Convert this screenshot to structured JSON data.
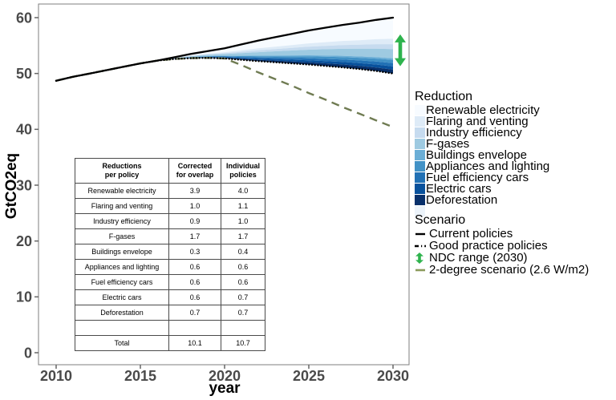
{
  "chart_data": {
    "type": "area",
    "title": "",
    "xlabel": "year",
    "ylabel": "GtCO2eq",
    "x_ticks": [
      2010,
      2015,
      2020,
      2025,
      2030
    ],
    "y_ticks": [
      0,
      10,
      20,
      30,
      40,
      50,
      60
    ],
    "xlim": [
      2009,
      2031
    ],
    "ylim": [
      0,
      62
    ],
    "grid": false,
    "legend_position": "right",
    "years": [
      2010,
      2011,
      2012,
      2013,
      2014,
      2015,
      2016,
      2017,
      2018,
      2019,
      2020,
      2021,
      2022,
      2023,
      2024,
      2025,
      2026,
      2027,
      2028,
      2029,
      2030
    ],
    "series": [
      {
        "name": "Current policies",
        "type": "line",
        "style": "solid",
        "color": "#000000",
        "values": [
          48.7,
          49.4,
          50.0,
          50.6,
          51.2,
          51.8,
          52.3,
          52.9,
          53.5,
          54.0,
          54.5,
          55.2,
          55.9,
          56.5,
          57.1,
          57.7,
          58.2,
          58.7,
          59.1,
          59.6,
          60.0
        ]
      },
      {
        "name": "Good practice policies",
        "type": "line",
        "style": "dotted",
        "color": "#000000",
        "values": [
          48.7,
          49.4,
          50.0,
          50.6,
          51.2,
          51.8,
          52.3,
          52.6,
          52.75,
          52.8,
          52.7,
          52.45,
          52.2,
          52.0,
          51.8,
          51.6,
          51.35,
          51.1,
          50.8,
          50.45,
          50.0
        ]
      },
      {
        "name": "2-degree scenario (2.6 W/m2)",
        "type": "line",
        "style": "dashed",
        "color": "#6F7B52",
        "values": [
          48.7,
          49.4,
          50.0,
          50.6,
          51.2,
          51.8,
          52.3,
          52.6,
          52.75,
          52.8,
          52.7,
          51.5,
          50.2,
          49.0,
          47.8,
          46.5,
          45.3,
          44.0,
          42.8,
          41.6,
          40.4
        ]
      }
    ],
    "reduction_series": [
      {
        "name": "Renewable electricity",
        "color": "#F7FBFF",
        "reduction_2030": 3.9
      },
      {
        "name": "Flaring and venting",
        "color": "#DEEBF7",
        "reduction_2030": 1.0
      },
      {
        "name": "Industry efficiency",
        "color": "#C6DBEF",
        "reduction_2030": 0.9
      },
      {
        "name": "F-gases",
        "color": "#9ECAE1",
        "reduction_2030": 1.7
      },
      {
        "name": "Buildings envelope",
        "color": "#6BAED6",
        "reduction_2030": 0.3
      },
      {
        "name": "Appliances and lighting",
        "color": "#4292C6",
        "reduction_2030": 0.6
      },
      {
        "name": "Fuel efficiency cars",
        "color": "#2171B5",
        "reduction_2030": 0.6
      },
      {
        "name": "Electric cars",
        "color": "#08519C",
        "reduction_2030": 0.6
      },
      {
        "name": "Deforestation",
        "color": "#08306B",
        "reduction_2030": 0.7
      }
    ],
    "ndc_range_2030": [
      51.3,
      57.0
    ],
    "ndc_color": "#2EB34D",
    "axis_tick_color": "#4a4a4a",
    "panel_border_color": "#7f7f7f"
  },
  "table": {
    "headers": [
      {
        "line1": "Reductions",
        "line2": "per policy"
      },
      {
        "line1": "Corrected",
        "line2": "for overlap"
      },
      {
        "line1": "Individual",
        "line2": "policies"
      }
    ],
    "rows": [
      {
        "label": "Renewable electricity",
        "corrected": "3.9",
        "individual": "4.0"
      },
      {
        "label": "Flaring and venting",
        "corrected": "1.0",
        "individual": "1.1"
      },
      {
        "label": "Industry efficiency",
        "corrected": "0.9",
        "individual": "1.0"
      },
      {
        "label": "F-gases",
        "corrected": "1.7",
        "individual": "1.7"
      },
      {
        "label": "Buildings envelope",
        "corrected": "0.3",
        "individual": "0.4"
      },
      {
        "label": "Appliances and lighting",
        "corrected": "0.6",
        "individual": "0.6"
      },
      {
        "label": "Fuel efficiency cars",
        "corrected": "0.6",
        "individual": "0.6"
      },
      {
        "label": "Electric cars",
        "corrected": "0.6",
        "individual": "0.7"
      },
      {
        "label": "Deforestation",
        "corrected": "0.7",
        "individual": "0.7"
      }
    ],
    "total_row": {
      "label": "Total",
      "corrected": "10.1",
      "individual": "10.7"
    }
  },
  "reduction_legend": {
    "title": "Reduction",
    "items": [
      {
        "label": "Renewable electricity",
        "color": "#F7FBFF"
      },
      {
        "label": "Flaring and venting",
        "color": "#DEEBF7"
      },
      {
        "label": "Industry efficiency",
        "color": "#C6DBEF"
      },
      {
        "label": "F-gases",
        "color": "#9ECAE1"
      },
      {
        "label": "Buildings envelope",
        "color": "#6BAED6"
      },
      {
        "label": "Appliances and lighting",
        "color": "#4292C6"
      },
      {
        "label": "Fuel efficiency cars",
        "color": "#2171B5"
      },
      {
        "label": "Electric cars",
        "color": "#08519C"
      },
      {
        "label": "Deforestation",
        "color": "#08306B"
      },
      {
        "label": "",
        "color": "#ECF3FA"
      }
    ]
  },
  "scenario_legend": {
    "title": "Scenario",
    "items": [
      {
        "label": "Current policies",
        "key": "solid-black-line"
      },
      {
        "label": "Good practice policies",
        "key": "dash-dot-black-line"
      },
      {
        "label": "NDC range (2030)",
        "key": "green-double-arrow"
      },
      {
        "label": "2-degree scenario (2.6 W/m2)",
        "key": "olive-dash-line"
      }
    ]
  }
}
